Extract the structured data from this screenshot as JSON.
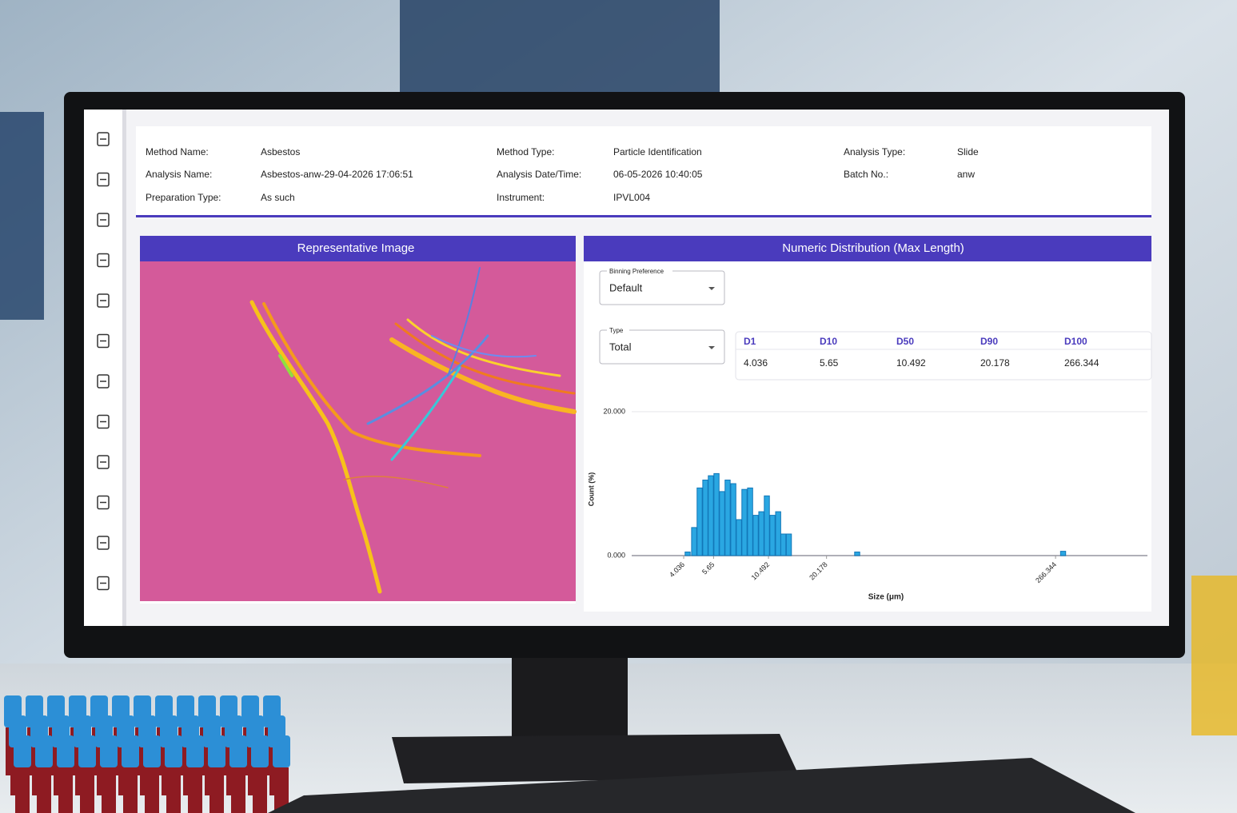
{
  "info": {
    "columns": [
      [
        {
          "label": "Method Name:",
          "value": "Asbestos"
        },
        {
          "label": "Analysis Name:",
          "value": "Asbestos-anw-29-04-2026 17:06:51"
        },
        {
          "label": "Preparation Type:",
          "value": "As such"
        }
      ],
      [
        {
          "label": "Method Type:",
          "value": "Particle Identification"
        },
        {
          "label": "Analysis Date/Time:",
          "value": "06-05-2026 10:40:05"
        },
        {
          "label": "Instrument:",
          "value": "IPVL004"
        }
      ],
      [
        {
          "label": "Analysis Type:",
          "value": "Slide"
        },
        {
          "label": "Batch No.:",
          "value": "anw"
        }
      ]
    ]
  },
  "image_panel": {
    "title": "Representative Image"
  },
  "controls": {
    "binning": {
      "label": "Binning Preference",
      "value": "Default"
    },
    "type": {
      "label": "Type",
      "value": "Total"
    }
  },
  "stats": {
    "columns": [
      "D1",
      "D10",
      "D50",
      "D90",
      "D100"
    ],
    "values": [
      4.036,
      5.65,
      10.492,
      20.178,
      266.344
    ]
  },
  "chart_data": {
    "type": "bar",
    "title": "Numeric Distribution (Max Length)",
    "x_label": "Size (μm)",
    "y_label": "Count (%)",
    "x": [
      4.22,
      4.54,
      4.83,
      5.15,
      5.48,
      5.84,
      6.22,
      6.62,
      7.06,
      7.52,
      8.0,
      8.53,
      9.08,
      9.68,
      10.3,
      10.97,
      11.7,
      12.4,
      13.2,
      28.5,
      290
    ],
    "values": [
      0.5,
      3.9,
      9.4,
      10.5,
      11.1,
      11.4,
      8.9,
      10.5,
      10,
      5,
      9.2,
      9.4,
      5.6,
      6.1,
      8.3,
      5.6,
      6.1,
      3,
      3,
      0.5,
      0.6
    ],
    "color": "#2aa7e2",
    "xlim": [
      2.35,
      750
    ],
    "xscale": "log",
    "xticks": [
      4.036,
      5.65,
      10.492,
      20.178,
      266.344
    ],
    "ylim": [
      0,
      20
    ],
    "yticks": [
      {
        "value": 0,
        "label": "0.000"
      },
      {
        "value": 20,
        "label": "20.000"
      }
    ],
    "grid": true
  }
}
